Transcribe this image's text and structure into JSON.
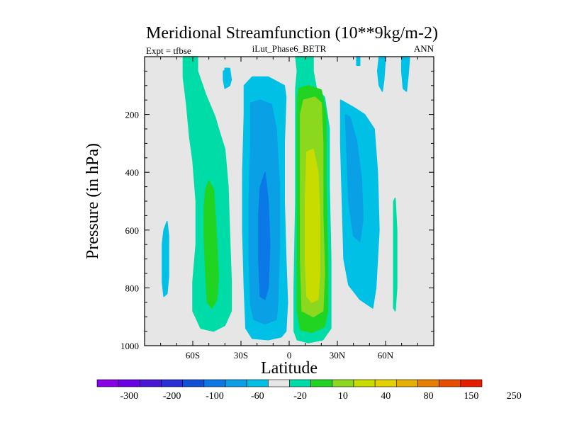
{
  "chart_data": {
    "type": "heatmap",
    "title": "Meridional Streamfunction (10**9kg/m-2)",
    "left_string": "Expt = tfbse",
    "center_string": "iLut_Phase6_BETR",
    "right_string": "ANN",
    "xlabel": "Latitude",
    "ylabel": "Pressure (in hPa)",
    "xlim": [
      -90,
      90
    ],
    "ylim": [
      1000,
      0
    ],
    "x_ticks": [
      {
        "value": -60,
        "label": "60S"
      },
      {
        "value": -30,
        "label": "30S"
      },
      {
        "value": 0,
        "label": "0"
      },
      {
        "value": 30,
        "label": "30N"
      },
      {
        "value": 60,
        "label": "60N"
      }
    ],
    "y_ticks": [
      {
        "value": 200,
        "label": "200"
      },
      {
        "value": 400,
        "label": "400"
      },
      {
        "value": 600,
        "label": "600"
      },
      {
        "value": 800,
        "label": "800"
      },
      {
        "value": 1000,
        "label": "1000"
      }
    ],
    "background_color": "#e6e6e6",
    "colorbar": {
      "colors": [
        "#8a00e6",
        "#6a00e6",
        "#4a16d6",
        "#2a2ed6",
        "#1050d6",
        "#0a78e6",
        "#0aa0e6",
        "#00c0e6",
        "#e6e6e6",
        "#00dca8",
        "#22d422",
        "#8cd81e",
        "#c8dc00",
        "#e6d000",
        "#e6b000",
        "#e67e00",
        "#e64e00",
        "#e61e00"
      ],
      "labels": [
        "-300",
        "-200",
        "-100",
        "-60",
        "-20",
        "10",
        "40",
        "80",
        "150",
        "250"
      ]
    },
    "level_colors": {
      "-40": "#0a78e6",
      "-30": "#0aa0e6",
      "-20": "#00c0e6",
      "10": "#00dca8",
      "20": "#22d422",
      "40": "#8cd81e",
      "60": "#c8dc00"
    },
    "regions": [
      {
        "level": "-20",
        "points": [
          [
            -78,
            600
          ],
          [
            -76,
            570
          ],
          [
            -75,
            620
          ],
          [
            -75,
            760
          ],
          [
            -76,
            820
          ],
          [
            -78,
            830
          ],
          [
            -79,
            780
          ],
          [
            -79,
            650
          ]
        ]
      },
      {
        "level": "10",
        "points": [
          [
            -66,
            0
          ],
          [
            -57,
            0
          ],
          [
            -57,
            50
          ],
          [
            -52,
            130
          ],
          [
            -46,
            210
          ],
          [
            -44,
            250
          ],
          [
            -40,
            320
          ],
          [
            -38,
            450
          ],
          [
            -37,
            620
          ],
          [
            -36,
            780
          ],
          [
            -36,
            880
          ],
          [
            -40,
            930
          ],
          [
            -47,
            950
          ],
          [
            -55,
            940
          ],
          [
            -60,
            880
          ],
          [
            -60,
            780
          ],
          [
            -58,
            650
          ],
          [
            -58,
            500
          ],
          [
            -60,
            360
          ],
          [
            -62,
            280
          ],
          [
            -64,
            160
          ],
          [
            -66,
            70
          ]
        ]
      },
      {
        "level": "20",
        "points": [
          [
            -50,
            430
          ],
          [
            -47,
            460
          ],
          [
            -46,
            550
          ],
          [
            -45,
            650
          ],
          [
            -44,
            760
          ],
          [
            -45,
            840
          ],
          [
            -48,
            870
          ],
          [
            -51,
            850
          ],
          [
            -52,
            750
          ],
          [
            -53,
            620
          ],
          [
            -53,
            520
          ],
          [
            -52,
            460
          ]
        ]
      },
      {
        "level": "-20",
        "points": [
          [
            -41,
            50
          ],
          [
            -37,
            40
          ],
          [
            -36,
            80
          ],
          [
            -37,
            100
          ],
          [
            -40,
            110
          ],
          [
            -41,
            80
          ]
        ]
      },
      {
        "level": "-20",
        "points": [
          [
            -28,
            100
          ],
          [
            -23,
            70
          ],
          [
            -13,
            70
          ],
          [
            -3,
            100
          ],
          [
            -2,
            140
          ],
          [
            -3,
            300
          ],
          [
            -3,
            500
          ],
          [
            -2,
            700
          ],
          [
            -1,
            850
          ],
          [
            -2,
            950
          ],
          [
            -5,
            970
          ],
          [
            -13,
            980
          ],
          [
            -23,
            975
          ],
          [
            -27,
            940
          ],
          [
            -28,
            800
          ],
          [
            -29,
            600
          ],
          [
            -29,
            400
          ],
          [
            -28,
            200
          ]
        ]
      },
      {
        "level": "-30",
        "points": [
          [
            -24,
            160
          ],
          [
            -18,
            150
          ],
          [
            -11,
            165
          ],
          [
            -8,
            250
          ],
          [
            -6,
            450
          ],
          [
            -6,
            650
          ],
          [
            -7,
            850
          ],
          [
            -8,
            910
          ],
          [
            -15,
            925
          ],
          [
            -22,
            910
          ],
          [
            -24,
            860
          ],
          [
            -25,
            700
          ],
          [
            -25,
            500
          ],
          [
            -24,
            300
          ]
        ]
      },
      {
        "level": "-40",
        "points": [
          [
            -18,
            450
          ],
          [
            -15,
            400
          ],
          [
            -13,
            500
          ],
          [
            -12,
            650
          ],
          [
            -13,
            800
          ],
          [
            -15,
            840
          ],
          [
            -18,
            830
          ],
          [
            -19,
            700
          ],
          [
            -19,
            550
          ]
        ]
      },
      {
        "level": "10",
        "points": [
          [
            4,
            0
          ],
          [
            15,
            0
          ],
          [
            15,
            50
          ],
          [
            17,
            110
          ],
          [
            22,
            140
          ],
          [
            25,
            250
          ],
          [
            25,
            450
          ],
          [
            26,
            700
          ],
          [
            26,
            850
          ],
          [
            26,
            940
          ],
          [
            21,
            980
          ],
          [
            12,
            990
          ],
          [
            5,
            980
          ],
          [
            3,
            950
          ],
          [
            3,
            800
          ],
          [
            4,
            500
          ],
          [
            4,
            250
          ],
          [
            4,
            110
          ],
          [
            5,
            50
          ]
        ]
      },
      {
        "level": "20",
        "points": [
          [
            6,
            110
          ],
          [
            12,
            100
          ],
          [
            20,
            115
          ],
          [
            23,
            200
          ],
          [
            23,
            450
          ],
          [
            24,
            700
          ],
          [
            24,
            880
          ],
          [
            22,
            935
          ],
          [
            14,
            955
          ],
          [
            7,
            945
          ],
          [
            5,
            880
          ],
          [
            5,
            600
          ],
          [
            5,
            300
          ],
          [
            5,
            150
          ]
        ]
      },
      {
        "level": "40",
        "points": [
          [
            9,
            150
          ],
          [
            16,
            140
          ],
          [
            20,
            160
          ],
          [
            21,
            300
          ],
          [
            21,
            550
          ],
          [
            22,
            750
          ],
          [
            21,
            880
          ],
          [
            15,
            900
          ],
          [
            8,
            880
          ],
          [
            7,
            700
          ],
          [
            7,
            400
          ],
          [
            7,
            200
          ]
        ]
      },
      {
        "level": "60",
        "points": [
          [
            11,
            330
          ],
          [
            15,
            320
          ],
          [
            18,
            400
          ],
          [
            19,
            550
          ],
          [
            19,
            750
          ],
          [
            18,
            840
          ],
          [
            14,
            850
          ],
          [
            11,
            830
          ],
          [
            10,
            700
          ],
          [
            10,
            500
          ]
        ]
      },
      {
        "level": "-20",
        "points": [
          [
            32,
            150
          ],
          [
            40,
            175
          ],
          [
            47,
            200
          ],
          [
            53,
            250
          ],
          [
            55,
            400
          ],
          [
            56,
            600
          ],
          [
            54,
            800
          ],
          [
            52,
            870
          ],
          [
            44,
            840
          ],
          [
            37,
            790
          ],
          [
            34,
            700
          ],
          [
            33,
            500
          ],
          [
            32,
            300
          ]
        ]
      },
      {
        "level": "-30",
        "points": [
          [
            35,
            200
          ],
          [
            38,
            210
          ],
          [
            42,
            290
          ],
          [
            45,
            420
          ],
          [
            46,
            560
          ],
          [
            44,
            640
          ],
          [
            40,
            620
          ],
          [
            37,
            500
          ],
          [
            36,
            350
          ]
        ]
      },
      {
        "level": "-20",
        "points": [
          [
            56,
            0
          ],
          [
            60,
            0
          ],
          [
            59,
            80
          ],
          [
            58,
            120
          ],
          [
            56,
            100
          ],
          [
            55,
            50
          ]
        ]
      },
      {
        "level": "-20",
        "points": [
          [
            70,
            0
          ],
          [
            75,
            0
          ],
          [
            74,
            70
          ],
          [
            73,
            120
          ],
          [
            71,
            110
          ],
          [
            70,
            50
          ]
        ]
      },
      {
        "level": "10",
        "points": [
          [
            65,
            500
          ],
          [
            66,
            490
          ],
          [
            67,
            600
          ],
          [
            67,
            800
          ],
          [
            66,
            880
          ],
          [
            65,
            870
          ],
          [
            65,
            650
          ]
        ]
      },
      {
        "level": "-20",
        "points": [
          [
            -40,
            40
          ],
          [
            -38,
            40
          ],
          [
            -37,
            60
          ],
          [
            -38,
            90
          ],
          [
            -40,
            90
          ]
        ]
      },
      {
        "level": "-20",
        "points": [
          [
            42,
            0
          ],
          [
            44,
            0
          ],
          [
            44,
            30
          ],
          [
            42,
            30
          ]
        ]
      }
    ]
  }
}
